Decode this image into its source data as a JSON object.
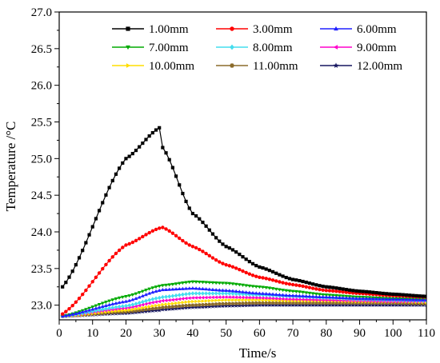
{
  "chart_data": {
    "type": "line",
    "title": "",
    "xlabel": "Time/s",
    "ylabel": "Temperature /°C",
    "xlim": [
      0,
      110
    ],
    "ylim": [
      22.8,
      27.0
    ],
    "x_ticks": [
      0,
      10,
      20,
      30,
      40,
      50,
      60,
      70,
      80,
      90,
      100,
      110
    ],
    "y_ticks": [
      23.0,
      23.5,
      24.0,
      24.5,
      25.0,
      25.5,
      26.0,
      26.5,
      27.0
    ],
    "x_tick_labels": [
      "0",
      "10",
      "20",
      "30",
      "40",
      "50",
      "60",
      "70",
      "80",
      "90",
      "100",
      "110"
    ],
    "y_tick_labels": [
      "23.0",
      "23.5",
      "24.0",
      "24.5",
      "25.0",
      "25.5",
      "26.0",
      "26.5",
      "27.0"
    ],
    "grid": false,
    "legend_position": "top",
    "x": [
      1,
      20,
      30,
      31,
      40,
      50,
      60,
      70,
      80,
      90,
      100,
      110
    ],
    "series": [
      {
        "name": "1.00mm",
        "color": "#000000",
        "marker": "square",
        "values": [
          23.25,
          25.0,
          25.42,
          25.15,
          24.25,
          23.8,
          23.52,
          23.35,
          23.25,
          23.19,
          23.15,
          23.12
        ]
      },
      {
        "name": "3.00mm",
        "color": "#ff0000",
        "marker": "circle",
        "values": [
          22.88,
          23.82,
          24.05,
          24.06,
          23.8,
          23.55,
          23.38,
          23.28,
          23.2,
          23.16,
          23.13,
          23.11
        ]
      },
      {
        "name": "6.00mm",
        "color": "#2020ff",
        "marker": "triangle-up",
        "values": [
          22.85,
          23.05,
          23.2,
          23.21,
          23.23,
          23.2,
          23.16,
          23.13,
          23.11,
          23.09,
          23.08,
          23.07
        ]
      },
      {
        "name": "7.00mm",
        "color": "#00aa00",
        "marker": "triangle-down",
        "values": [
          22.85,
          23.12,
          23.26,
          23.27,
          23.32,
          23.3,
          23.25,
          23.19,
          23.14,
          23.11,
          23.09,
          23.08
        ]
      },
      {
        "name": "8.00mm",
        "color": "#44ddee",
        "marker": "diamond",
        "values": [
          22.85,
          22.99,
          23.1,
          23.11,
          23.16,
          23.16,
          23.14,
          23.12,
          23.1,
          23.08,
          23.07,
          23.06
        ]
      },
      {
        "name": "9.00mm",
        "color": "#ff00cc",
        "marker": "triangle-left",
        "values": [
          22.85,
          22.96,
          23.05,
          23.06,
          23.1,
          23.11,
          23.1,
          23.08,
          23.07,
          23.06,
          23.05,
          23.05
        ]
      },
      {
        "name": "10.00mm",
        "color": "#ffdd00",
        "marker": "triangle-right",
        "values": [
          22.85,
          22.93,
          23.0,
          23.01,
          23.05,
          23.07,
          23.07,
          23.06,
          23.06,
          23.05,
          23.05,
          23.04
        ]
      },
      {
        "name": "11.00mm",
        "color": "#8b6b2b",
        "marker": "hexagon",
        "values": [
          22.85,
          22.91,
          22.96,
          22.97,
          23.0,
          23.02,
          23.03,
          23.03,
          23.03,
          23.03,
          23.03,
          23.02
        ]
      },
      {
        "name": "12.00mm",
        "color": "#151560",
        "marker": "star",
        "values": [
          22.85,
          22.89,
          22.93,
          22.94,
          22.97,
          22.99,
          23.0,
          23.0,
          23.0,
          23.0,
          23.0,
          23.0
        ]
      }
    ]
  }
}
